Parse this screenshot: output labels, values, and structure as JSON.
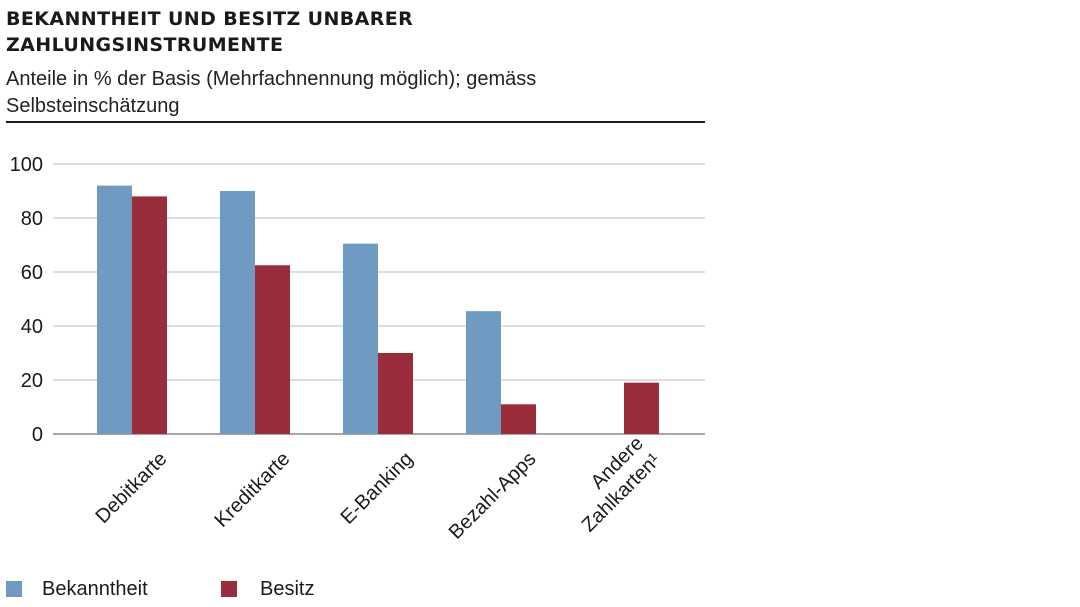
{
  "title_line1": "BEKANNTHEIT UND BESITZ UNBARER",
  "title_line2": "ZAHLUNGSINSTRUMENTE",
  "subtitle_line1": "Anteile in % der Basis (Mehrfachnennung möglich); gemäss",
  "subtitle_line2": "Selbsteinschätzung",
  "colors": {
    "bekanntheit": "#6f9ac2",
    "besitz": "#9b2c3c",
    "grid": "#bdbdbd"
  },
  "chart_data": {
    "type": "bar",
    "categories": [
      "Debitkarte",
      "Kreditkarte",
      "E-Banking",
      "Bezahl-Apps",
      "Andere\nZahlkarten¹"
    ],
    "series": [
      {
        "name": "Bekanntheit",
        "values": [
          92,
          90,
          70.5,
          45.5,
          null
        ]
      },
      {
        "name": "Besitz",
        "values": [
          88,
          62.5,
          30,
          11,
          19
        ]
      }
    ],
    "ylim": [
      0,
      100
    ],
    "yticks": [
      0,
      20,
      40,
      60,
      80,
      100
    ],
    "grid": true,
    "legend_position": "bottom-left"
  },
  "legend": {
    "bekanntheit": "Bekanntheit",
    "besitz": "Besitz"
  }
}
